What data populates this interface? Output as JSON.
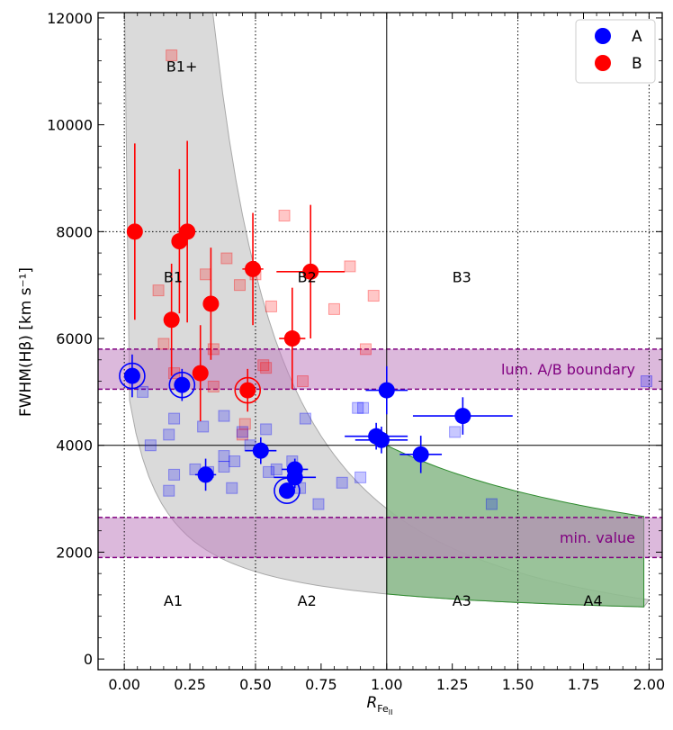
{
  "chart_data": {
    "type": "scatter",
    "xlabel_main": "R",
    "xlabel_sub": "Fe",
    "xlabel_sub2": "II",
    "ylabel": "FWHM(Hβ) [km s⁻¹]",
    "xlim": [
      -0.1,
      2.05
    ],
    "ylim": [
      -200,
      12100
    ],
    "x_ticks": [
      0.0,
      0.25,
      0.5,
      0.75,
      1.0,
      1.25,
      1.5,
      1.75,
      2.0
    ],
    "x_tick_labels": [
      "0.00",
      "0.25",
      "0.50",
      "0.75",
      "1.00",
      "1.25",
      "1.50",
      "1.75",
      "2.00"
    ],
    "y_ticks": [
      0,
      2000,
      4000,
      6000,
      8000,
      10000,
      12000
    ],
    "y_tick_labels": [
      "0",
      "2000",
      "4000",
      "6000",
      "8000",
      "10000",
      "12000"
    ],
    "colors": {
      "A": "#0000ff",
      "B": "#ff0000",
      "band": "#800080",
      "gray_region": "#d3d3d3",
      "green_region": "#2e8b2e"
    },
    "legend": [
      {
        "label": "A",
        "color": "#0000ff"
      },
      {
        "label": "B",
        "color": "#ff0000"
      }
    ],
    "region_labels": [
      {
        "text": "B1+",
        "x": 0.16,
        "y": 11000
      },
      {
        "text": "B1",
        "x": 0.15,
        "y": 7050
      },
      {
        "text": "B2",
        "x": 0.66,
        "y": 7050
      },
      {
        "text": "B3",
        "x": 1.25,
        "y": 7050
      },
      {
        "text": "A1",
        "x": 0.15,
        "y": 1000
      },
      {
        "text": "A2",
        "x": 0.66,
        "y": 1000
      },
      {
        "text": "A3",
        "x": 1.25,
        "y": 1000
      },
      {
        "text": "A4",
        "x": 1.75,
        "y": 1000
      }
    ],
    "bands": [
      {
        "label": "lum. A/B boundary",
        "y0": 5050,
        "y1": 5800
      },
      {
        "label": "min. value",
        "y0": 1900,
        "y1": 2650
      }
    ],
    "divider_lines": {
      "solid_x": 1.0,
      "solid_y": 4000,
      "dotted_x": [
        0.0,
        0.5,
        1.5,
        2.0
      ],
      "dotted_y": 8000
    },
    "series": [
      {
        "name": "B",
        "points": [
          {
            "x": 0.04,
            "y": 8000,
            "yerr_low": 1650,
            "yerr_high": 1650
          },
          {
            "x": 0.18,
            "y": 6350,
            "yerr_low": 1050,
            "yerr_high": 1050
          },
          {
            "x": 0.21,
            "y": 7820,
            "yerr_low": 1350,
            "yerr_high": 1350
          },
          {
            "x": 0.24,
            "y": 8000,
            "yerr_low": 1700,
            "yerr_high": 1700
          },
          {
            "x": 0.29,
            "y": 5350,
            "yerr_low": 900,
            "yerr_high": 900
          },
          {
            "x": 0.33,
            "y": 6650,
            "yerr_low": 1050,
            "yerr_high": 1050
          },
          {
            "x": 0.47,
            "y": 5030,
            "yerr_low": 400,
            "yerr_high": 400,
            "circled": true
          },
          {
            "x": 0.49,
            "y": 7300,
            "xerr": 0.04,
            "yerr_low": 1050,
            "yerr_high": 1050
          },
          {
            "x": 0.64,
            "y": 6000,
            "xerr": 0.05,
            "yerr_low": 950,
            "yerr_high": 950
          },
          {
            "x": 0.71,
            "y": 7250,
            "xerr": 0.13,
            "yerr_low": 1250,
            "yerr_high": 1250
          }
        ]
      },
      {
        "name": "A",
        "points": [
          {
            "x": 0.03,
            "y": 5300,
            "yerr_low": 400,
            "yerr_high": 400,
            "circled": true
          },
          {
            "x": 0.22,
            "y": 5130,
            "yerr_low": 300,
            "yerr_high": 300,
            "circled": true
          },
          {
            "x": 0.31,
            "y": 3450,
            "xerr": 0.04,
            "yerr_low": 300,
            "yerr_high": 300
          },
          {
            "x": 0.52,
            "y": 3900,
            "xerr": 0.06,
            "yerr_low": 250,
            "yerr_high": 250
          },
          {
            "x": 0.62,
            "y": 3150,
            "yerr_low": 150,
            "yerr_high": 150,
            "circled": true
          },
          {
            "x": 0.65,
            "y": 3550,
            "xerr": 0.05,
            "yerr_low": 200,
            "yerr_high": 200
          },
          {
            "x": 0.65,
            "y": 3400,
            "xerr": 0.08,
            "yerr_low": 200,
            "yerr_high": 200
          },
          {
            "x": 0.96,
            "y": 4170,
            "xerr": 0.12,
            "yerr_low": 250,
            "yerr_high": 250
          },
          {
            "x": 0.98,
            "y": 4100,
            "xerr": 0.1,
            "yerr_low": 250,
            "yerr_high": 250
          },
          {
            "x": 1.0,
            "y": 5030,
            "xerr": 0.08,
            "yerr_low": 450,
            "yerr_high": 450
          },
          {
            "x": 1.13,
            "y": 3830,
            "xerr": 0.08,
            "yerr_low": 350,
            "yerr_high": 350
          },
          {
            "x": 1.29,
            "y": 4550,
            "xerr": 0.19,
            "yerr_low": 350,
            "yerr_high": 350
          }
        ]
      },
      {
        "name": "B_background",
        "points": [
          {
            "x": 0.18,
            "y": 11300
          },
          {
            "x": 0.13,
            "y": 6900
          },
          {
            "x": 0.15,
            "y": 5900
          },
          {
            "x": 0.19,
            "y": 5350
          },
          {
            "x": 0.31,
            "y": 7200
          },
          {
            "x": 0.34,
            "y": 5800
          },
          {
            "x": 0.34,
            "y": 5100
          },
          {
            "x": 0.39,
            "y": 7500
          },
          {
            "x": 0.44,
            "y": 7000
          },
          {
            "x": 0.46,
            "y": 4400
          },
          {
            "x": 0.45,
            "y": 4200
          },
          {
            "x": 0.5,
            "y": 7200
          },
          {
            "x": 0.53,
            "y": 5500
          },
          {
            "x": 0.54,
            "y": 5450
          },
          {
            "x": 0.56,
            "y": 6600
          },
          {
            "x": 0.61,
            "y": 8300
          },
          {
            "x": 0.68,
            "y": 5200
          },
          {
            "x": 0.8,
            "y": 6550
          },
          {
            "x": 0.86,
            "y": 7350
          },
          {
            "x": 0.92,
            "y": 5800
          },
          {
            "x": 0.95,
            "y": 6800
          }
        ]
      },
      {
        "name": "A_background",
        "points": [
          {
            "x": 0.07,
            "y": 5000
          },
          {
            "x": 0.1,
            "y": 4000
          },
          {
            "x": 0.17,
            "y": 4200
          },
          {
            "x": 0.19,
            "y": 4500
          },
          {
            "x": 0.19,
            "y": 3450
          },
          {
            "x": 0.17,
            "y": 3150
          },
          {
            "x": 0.27,
            "y": 3550
          },
          {
            "x": 0.3,
            "y": 4350
          },
          {
            "x": 0.32,
            "y": 3500
          },
          {
            "x": 0.38,
            "y": 3800
          },
          {
            "x": 0.38,
            "y": 3600
          },
          {
            "x": 0.38,
            "y": 4550
          },
          {
            "x": 0.42,
            "y": 3700
          },
          {
            "x": 0.41,
            "y": 3200
          },
          {
            "x": 0.45,
            "y": 4250
          },
          {
            "x": 0.48,
            "y": 4000
          },
          {
            "x": 0.54,
            "y": 4300
          },
          {
            "x": 0.55,
            "y": 3500
          },
          {
            "x": 0.58,
            "y": 3550
          },
          {
            "x": 0.64,
            "y": 3700
          },
          {
            "x": 0.67,
            "y": 3200
          },
          {
            "x": 0.69,
            "y": 4500
          },
          {
            "x": 0.74,
            "y": 2900
          },
          {
            "x": 0.83,
            "y": 3300
          },
          {
            "x": 0.89,
            "y": 4700
          },
          {
            "x": 0.91,
            "y": 4700
          },
          {
            "x": 0.9,
            "y": 3400
          },
          {
            "x": 1.26,
            "y": 4250
          },
          {
            "x": 1.4,
            "y": 2900
          },
          {
            "x": 1.99,
            "y": 5200
          }
        ]
      }
    ]
  }
}
